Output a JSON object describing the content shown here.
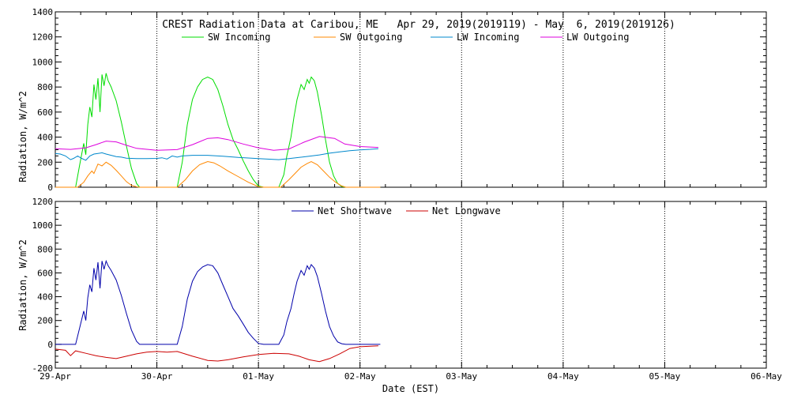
{
  "chart_data": {
    "type": "line",
    "title": "CREST Radiation Data at Caribou, ME   Apr 29, 2019(2019119) - May  6, 2019(2019126)",
    "xlabel": "Date (EST)",
    "x_ticks": [
      "29-Apr",
      "30-Apr",
      "01-May",
      "02-May",
      "03-May",
      "04-May",
      "05-May",
      "06-May"
    ],
    "xlim": [
      0,
      7
    ],
    "panels": [
      {
        "ylabel": "Radiation, W/m^2",
        "ylim": [
          0,
          1400
        ],
        "y_ticks": [
          0,
          200,
          400,
          600,
          800,
          1000,
          1200,
          1400
        ],
        "series": [
          {
            "name": "SW Incoming",
            "color": "#00dd00",
            "x": [
              0.0,
              0.2,
              0.24,
              0.28,
              0.3,
              0.32,
              0.34,
              0.36,
              0.38,
              0.4,
              0.42,
              0.44,
              0.46,
              0.48,
              0.5,
              0.52,
              0.55,
              0.6,
              0.65,
              0.7,
              0.75,
              0.8,
              0.83,
              1.0,
              1.2,
              1.25,
              1.3,
              1.35,
              1.4,
              1.45,
              1.5,
              1.55,
              1.6,
              1.65,
              1.7,
              1.75,
              1.8,
              1.85,
              1.9,
              1.95,
              2.0,
              2.05,
              2.2,
              2.25,
              2.28,
              2.32,
              2.35,
              2.38,
              2.42,
              2.45,
              2.48,
              2.5,
              2.52,
              2.55,
              2.58,
              2.62,
              2.66,
              2.7,
              2.74,
              2.78,
              2.82,
              2.86,
              3.0,
              3.2
            ],
            "y": [
              0,
              0,
              180,
              350,
              260,
              500,
              640,
              560,
              820,
              700,
              870,
              600,
              900,
              810,
              910,
              850,
              800,
              690,
              520,
              330,
              150,
              30,
              0,
              0,
              0,
              200,
              500,
              700,
              800,
              860,
              880,
              860,
              780,
              650,
              500,
              380,
              300,
              210,
              130,
              60,
              10,
              0,
              0,
              100,
              250,
              400,
              560,
              700,
              820,
              780,
              860,
              830,
              880,
              850,
              760,
              580,
              380,
              200,
              90,
              30,
              5,
              0,
              0,
              0
            ]
          },
          {
            "name": "SW Outgoing",
            "color": "#ff8800",
            "x": [
              0.0,
              0.22,
              0.28,
              0.32,
              0.36,
              0.38,
              0.42,
              0.46,
              0.5,
              0.55,
              0.6,
              0.65,
              0.7,
              0.75,
              0.8,
              0.83,
              1.2,
              1.28,
              1.35,
              1.42,
              1.5,
              1.56,
              1.62,
              1.7,
              1.8,
              1.9,
              2.0,
              2.05,
              2.22,
              2.3,
              2.36,
              2.42,
              2.48,
              2.52,
              2.58,
              2.64,
              2.7,
              2.76,
              2.82,
              2.86,
              3.2
            ],
            "y": [
              0,
              0,
              40,
              90,
              130,
              110,
              185,
              170,
              200,
              175,
              135,
              90,
              45,
              15,
              3,
              0,
              0,
              60,
              130,
              180,
              205,
              195,
              170,
              130,
              85,
              40,
              5,
              0,
              0,
              60,
              110,
              160,
              190,
              205,
              180,
              130,
              80,
              40,
              10,
              0,
              0
            ]
          },
          {
            "name": "LW Incoming",
            "color": "#0088cc",
            "x": [
              0.0,
              0.05,
              0.1,
              0.15,
              0.18,
              0.22,
              0.26,
              0.3,
              0.34,
              0.38,
              0.42,
              0.46,
              0.5,
              0.55,
              0.6,
              0.65,
              0.7,
              0.8,
              0.9,
              1.0,
              1.05,
              1.1,
              1.15,
              1.2,
              1.25,
              1.35,
              1.5,
              1.65,
              1.8,
              2.0,
              2.2,
              2.3,
              2.4,
              2.5,
              2.6,
              2.7,
              2.8,
              2.9,
              3.0,
              3.1,
              3.18
            ],
            "y": [
              270,
              265,
              250,
              220,
              230,
              250,
              230,
              215,
              250,
              265,
              270,
              275,
              265,
              255,
              245,
              240,
              232,
              228,
              228,
              230,
              235,
              225,
              250,
              240,
              250,
              255,
              255,
              248,
              238,
              228,
              220,
              228,
              238,
              248,
              258,
              272,
              282,
              292,
              298,
              303,
              308
            ]
          },
          {
            "name": "LW Outgoing",
            "color": "#dd00dd",
            "x": [
              0.0,
              0.15,
              0.3,
              0.4,
              0.5,
              0.6,
              0.7,
              0.8,
              1.0,
              1.2,
              1.35,
              1.5,
              1.6,
              1.7,
              1.85,
              2.0,
              2.15,
              2.3,
              2.45,
              2.6,
              2.75,
              2.85,
              3.0,
              3.18
            ],
            "y": [
              308,
              302,
              315,
              340,
              368,
              362,
              335,
              310,
              295,
              300,
              340,
              390,
              395,
              380,
              345,
              315,
              295,
              305,
              360,
              405,
              390,
              345,
              325,
              318
            ]
          }
        ]
      },
      {
        "ylabel": "Radiation, W/m^2",
        "ylim": [
          -200,
          1200
        ],
        "y_ticks": [
          -200,
          0,
          200,
          400,
          600,
          800,
          1000,
          1200
        ],
        "series": [
          {
            "name": "Net Shortwave",
            "color": "#0000aa",
            "x": [
              0.0,
              0.2,
              0.24,
              0.28,
              0.3,
              0.32,
              0.34,
              0.36,
              0.38,
              0.4,
              0.42,
              0.44,
              0.46,
              0.48,
              0.5,
              0.52,
              0.55,
              0.6,
              0.65,
              0.7,
              0.75,
              0.8,
              0.83,
              1.0,
              1.2,
              1.25,
              1.3,
              1.35,
              1.4,
              1.45,
              1.5,
              1.55,
              1.6,
              1.65,
              1.7,
              1.75,
              1.8,
              1.85,
              1.9,
              1.95,
              2.0,
              2.05,
              2.2,
              2.25,
              2.28,
              2.32,
              2.35,
              2.38,
              2.42,
              2.45,
              2.48,
              2.5,
              2.52,
              2.55,
              2.58,
              2.62,
              2.66,
              2.7,
              2.74,
              2.78,
              2.82,
              2.86,
              3.0,
              3.2
            ],
            "y": [
              0,
              0,
              140,
              280,
              200,
              390,
              500,
              440,
              640,
              540,
              690,
              470,
              700,
              630,
              700,
              660,
              620,
              540,
              410,
              260,
              120,
              25,
              0,
              0,
              0,
              150,
              380,
              530,
              610,
              650,
              670,
              660,
              600,
              500,
              400,
              300,
              240,
              170,
              100,
              50,
              8,
              0,
              0,
              80,
              190,
              300,
              420,
              530,
              620,
              580,
              660,
              630,
              670,
              640,
              570,
              430,
              280,
              150,
              70,
              20,
              5,
              0,
              0,
              0
            ]
          },
          {
            "name": "Net Longwave",
            "color": "#cc0000",
            "x": [
              0.0,
              0.1,
              0.15,
              0.2,
              0.3,
              0.4,
              0.5,
              0.6,
              0.7,
              0.8,
              0.9,
              1.0,
              1.1,
              1.2,
              1.35,
              1.5,
              1.6,
              1.7,
              1.85,
              2.0,
              2.15,
              2.3,
              2.4,
              2.5,
              2.6,
              2.7,
              2.8,
              2.9,
              3.0,
              3.18
            ],
            "y": [
              -40,
              -50,
              -95,
              -55,
              -75,
              -95,
              -110,
              -120,
              -100,
              -80,
              -65,
              -60,
              -65,
              -60,
              -100,
              -135,
              -140,
              -130,
              -105,
              -85,
              -75,
              -80,
              -100,
              -130,
              -145,
              -120,
              -80,
              -35,
              -20,
              -12
            ]
          }
        ]
      }
    ]
  }
}
